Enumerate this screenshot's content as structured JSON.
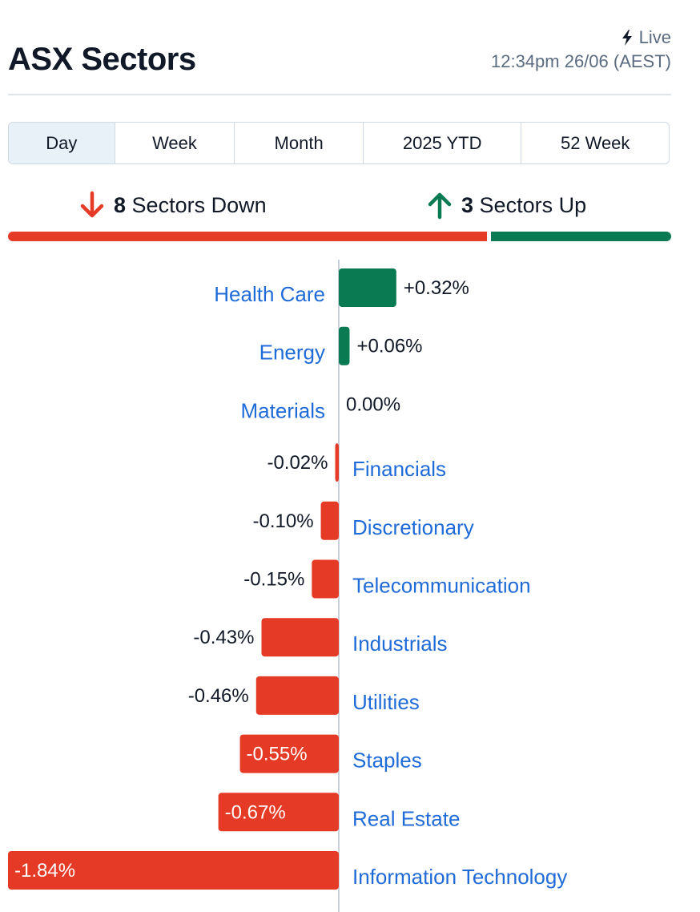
{
  "header": {
    "title": "ASX Sectors",
    "live_label": "Live",
    "timestamp": "12:34pm 26/06 (AEST)"
  },
  "tabs": [
    {
      "label": "Day",
      "active": true
    },
    {
      "label": "Week",
      "active": false
    },
    {
      "label": "Month",
      "active": false
    },
    {
      "label": "2025 YTD",
      "active": false
    },
    {
      "label": "52 Week",
      "active": false
    }
  ],
  "summary": {
    "down_count": "8",
    "down_label": "Sectors Down",
    "up_count": "3",
    "up_label": "Sectors Up"
  },
  "colors": {
    "up": "#0a7a53",
    "down": "#e53a25",
    "link": "#1f6bd8",
    "text": "#111827",
    "muted": "#5b6b80"
  },
  "chart_data": {
    "type": "bar",
    "orientation": "horizontal",
    "categories": [
      "Health Care",
      "Energy",
      "Materials",
      "Financials",
      "Discretionary",
      "Telecommunication",
      "Industrials",
      "Utilities",
      "Staples",
      "Real Estate",
      "Information Technology"
    ],
    "values": [
      0.32,
      0.06,
      0.0,
      -0.02,
      -0.1,
      -0.15,
      -0.43,
      -0.46,
      -0.55,
      -0.67,
      -1.84
    ],
    "labels": [
      "+0.32%",
      "+0.06%",
      "0.00%",
      "-0.02%",
      "-0.10%",
      "-0.15%",
      "-0.43%",
      "-0.46%",
      "-0.55%",
      "-0.67%",
      "-1.84%"
    ],
    "xlim": [
      -1.84,
      1.84
    ],
    "unit": "%"
  }
}
